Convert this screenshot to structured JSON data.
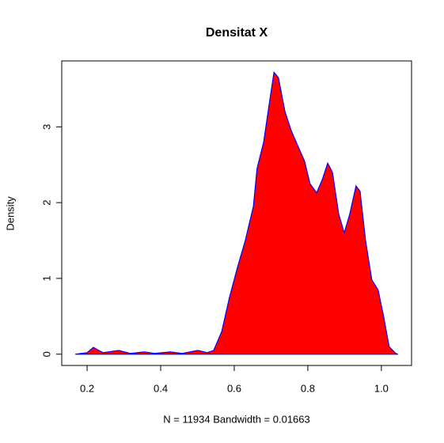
{
  "chart_data": {
    "type": "area",
    "title": "Densitat X",
    "xlabel": "N = 11934   Bandwidth = 0.01663",
    "ylabel": "Density",
    "fill_color": "#ff0000",
    "line_color": "#0000ff",
    "x": [
      0.168,
      0.2,
      0.217,
      0.243,
      0.286,
      0.318,
      0.355,
      0.383,
      0.426,
      0.458,
      0.501,
      0.527,
      0.544,
      0.566,
      0.587,
      0.609,
      0.63,
      0.652,
      0.662,
      0.68,
      0.695,
      0.708,
      0.72,
      0.738,
      0.755,
      0.77,
      0.791,
      0.806,
      0.824,
      0.839,
      0.854,
      0.867,
      0.884,
      0.899,
      0.914,
      0.931,
      0.942,
      0.957,
      0.974,
      0.991,
      1.006,
      1.021,
      1.039,
      1.045
    ],
    "values": [
      0,
      0.02,
      0.09,
      0.02,
      0.05,
      0.01,
      0.03,
      0.01,
      0.03,
      0.01,
      0.05,
      0.02,
      0.05,
      0.3,
      0.75,
      1.15,
      1.5,
      1.95,
      2.45,
      2.8,
      3.3,
      3.72,
      3.65,
      3.2,
      2.95,
      2.78,
      2.55,
      2.25,
      2.13,
      2.3,
      2.52,
      2.4,
      1.85,
      1.6,
      1.85,
      2.22,
      2.15,
      1.5,
      0.98,
      0.85,
      0.5,
      0.1,
      0.01,
      0
    ],
    "xlim": [
      0.131,
      1.082
    ],
    "ylim": [
      -0.149,
      3.87
    ],
    "xticks": [
      0.2,
      0.4,
      0.6,
      0.8,
      {
        "value": 1,
        "label": "1.0"
      }
    ],
    "yticks": [
      0,
      1,
      2,
      3
    ]
  }
}
